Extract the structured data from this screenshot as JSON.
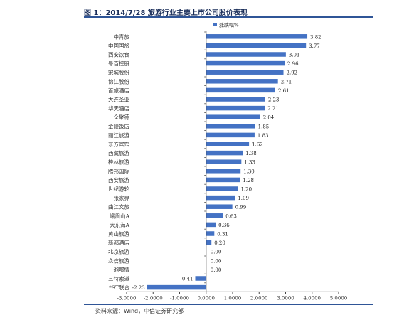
{
  "header": {
    "title": "图 1：2014/7/28 旅游行业主要上市公司股价表现"
  },
  "footer": {
    "source": "资料来源：Wind，中信证券研究部"
  },
  "colors": {
    "bar": "#4472c4",
    "axis": "#444444",
    "rule": "#2f5597"
  },
  "chart_data": {
    "type": "bar",
    "orientation": "horizontal",
    "series": [
      {
        "name": "涨跌幅%",
        "values": [
          3.82,
          3.77,
          3.01,
          2.96,
          2.92,
          2.71,
          2.61,
          2.23,
          2.21,
          2.04,
          1.85,
          1.83,
          1.62,
          1.38,
          1.33,
          1.3,
          1.28,
          1.2,
          1.09,
          0.99,
          0.63,
          0.36,
          0.31,
          0.2,
          0.0,
          0.0,
          0.0,
          -0.41,
          -2.23
        ],
        "labels": [
          "3.82",
          "3.77",
          "3.01",
          "2.96",
          "2.92",
          "2.71",
          "2.61",
          "2.23",
          "2.21",
          "2.04",
          "1.85",
          "1.83",
          "1.62",
          "1.38",
          "1.33",
          "1.30",
          "1.28",
          "1.20",
          "1.09",
          "0.99",
          "0.63",
          "0.36",
          "0.31",
          "0.20",
          "0.00",
          "0.00",
          "0.00",
          "-0.41",
          "-2.23"
        ]
      }
    ],
    "categories": [
      "中青旅",
      "中国国旅",
      "西安饮食",
      "号百控股",
      "宋城股份",
      "锦江股份",
      "首旅酒店",
      "大连圣亚",
      "华天酒店",
      "全聚德",
      "金陵饭店",
      "丽江旅游",
      "东方宾馆",
      "西藏旅游",
      "桂林旅游",
      "腾邦国际",
      "西安旅游",
      "世纪游轮",
      "张家界",
      "曲江文旅",
      "峨眉山A",
      "大东海A",
      "黄山旅游",
      "新都酒店",
      "北京旅游",
      "众信旅游",
      "湘鄂情",
      "三特索道",
      "*ST联合"
    ],
    "xlim": [
      -3,
      5
    ],
    "xticks": [
      "-3.0000",
      "-2.0000",
      "-1.0000",
      "0.0000",
      "1.0000",
      "2.0000",
      "3.0000",
      "4.0000",
      "5.0000"
    ],
    "legend": "top",
    "grid": false
  }
}
